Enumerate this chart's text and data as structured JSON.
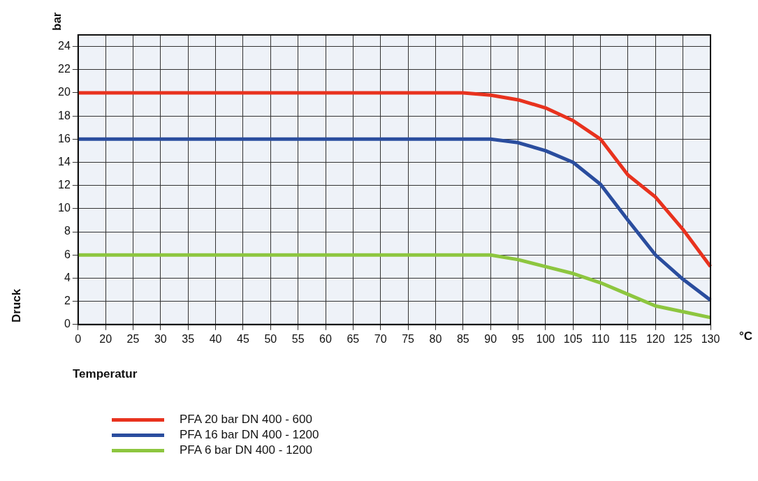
{
  "chart_data": {
    "type": "line",
    "xlabel": "Temperatur",
    "ylabel": "Druck",
    "annotations": [
      "bar",
      "°C"
    ],
    "categories": [
      "0",
      "20",
      "25",
      "30",
      "35",
      "40",
      "45",
      "50",
      "55",
      "60",
      "65",
      "70",
      "75",
      "80",
      "85",
      "90",
      "95",
      "100",
      "105",
      "110",
      "115",
      "120",
      "125",
      "130"
    ],
    "series": [
      {
        "name": "PFA 20 bar DN 400 - 600",
        "color": "#e8321e",
        "values": [
          20,
          20,
          20,
          20,
          20,
          20,
          20,
          20,
          20,
          20,
          20,
          20,
          20,
          20,
          20,
          19.8,
          19.4,
          18.7,
          17.6,
          16,
          12.9,
          11,
          8.2,
          5
        ]
      },
      {
        "name": "PFA 16 bar DN 400 - 1200",
        "color": "#2a4d9e",
        "values": [
          16,
          16,
          16,
          16,
          16,
          16,
          16,
          16,
          16,
          16,
          16,
          16,
          16,
          16,
          16,
          16,
          15.7,
          15,
          14,
          12.1,
          9,
          6,
          3.9,
          2.1
        ]
      },
      {
        "name": "PFA 6 bar DN 400 - 1200",
        "color": "#8dc63f",
        "values": [
          6,
          6,
          6,
          6,
          6,
          6,
          6,
          6,
          6,
          6,
          6,
          6,
          6,
          6,
          6,
          6,
          5.6,
          5,
          4.4,
          3.6,
          2.6,
          1.6,
          1.1,
          0.6
        ]
      }
    ],
    "ylim": [
      0,
      25
    ],
    "yticks": [
      0,
      2,
      4,
      6,
      8,
      10,
      12,
      14,
      16,
      18,
      20,
      22,
      24
    ],
    "grid": true,
    "legend": "bottom left",
    "marker": "none",
    "line_style": "solid"
  }
}
